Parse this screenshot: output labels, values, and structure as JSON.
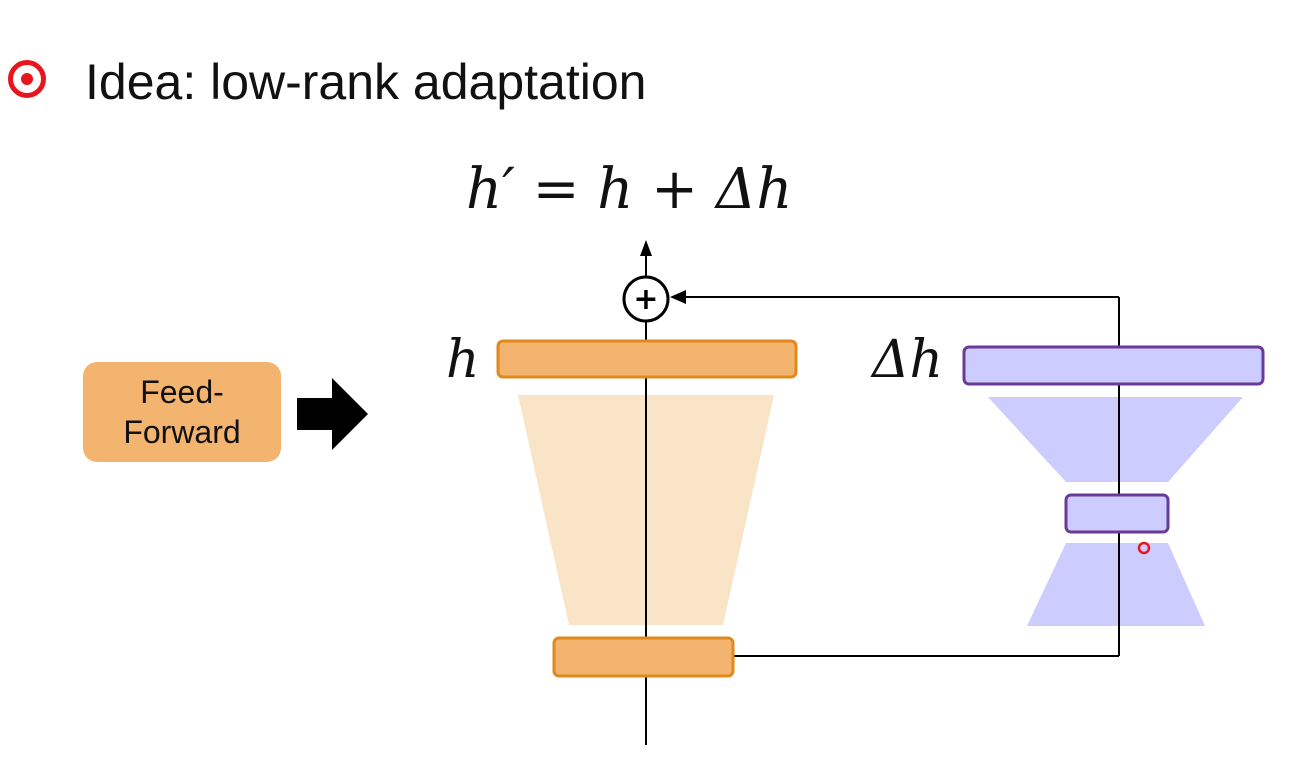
{
  "slide": {
    "title": "Idea: low-rank adaptation",
    "formula": "h′ = h + Δh"
  },
  "diagram": {
    "feedforward_line1": "Feed-",
    "feedforward_line2": "Forward",
    "output_label": "h",
    "delta_label": "Δh",
    "plus_symbol": "+"
  },
  "colors": {
    "accent_red": "#e8151d",
    "orange_fill": "#f2b46e",
    "orange_stroke": "#e08a1e",
    "orange_light": "#fae4c8",
    "purple_fill": "#ccccff",
    "purple_stroke": "#6a3a9a"
  }
}
